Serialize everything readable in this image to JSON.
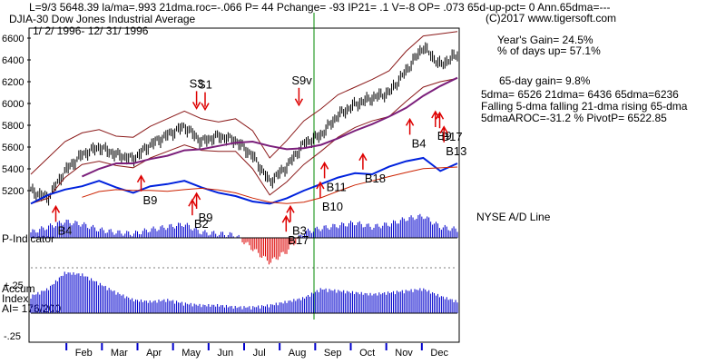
{
  "header": {
    "line1": "L=9/3  5648.39  la/ma=.993 21dma.roc=-.066 P=  44 Pchange= -93 IP21= .1 V=-8 OP= .073 65d-up-pct= 0 Ann.65dma=---",
    "line2": "DJIA-30  Dow Jones Industrial Average",
    "line3": "1/ 2/ 1996- 12/ 31/ 1996",
    "copyright": "(C)2017 www.tigersoft.com"
  },
  "stats": {
    "years_gain": "Year's Gain= 24.5%",
    "pct_days_up": "% of days up= 57.1%",
    "gain_65d": "65-day gain= 9.8%",
    "dma_line": "5dma= 6526 21dma= 6436 65dma=6236",
    "trend_line": "Falling 5-dma  falling 21-dma  rising 65-dma",
    "aroc_line": "5dmaAROC=-31.2 %  PivotP= 6522.85"
  },
  "panel_labels": {
    "ad_line": "NYSE A/D Line",
    "p_indicator": "P-Indicator",
    "accum": "Accum",
    "index": "Index",
    "ai": "AI= 176/200"
  },
  "colors": {
    "price": "#000000",
    "band": "#8b1a1a",
    "ma65": "#7b1f7b",
    "ad": "#0022dd",
    "ad_ma": "#cc2200",
    "signal_arrow": "#dd0000",
    "pi_pos": "#0000cc",
    "pi_neg": "#dd0000",
    "accum": "#0000cc",
    "vline": "#008800"
  },
  "chart_data": {
    "type": "line",
    "title": "DJIA-30 Dow Jones Industrial Average",
    "xlabel": "",
    "ylabel": "",
    "ylim": [
      5050,
      6700
    ],
    "yticks": [
      5200,
      5400,
      5600,
      5800,
      6000,
      6200,
      6400,
      6600
    ],
    "month_labels": [
      "Feb",
      "Mar",
      "Apr",
      "May",
      "Jun",
      "Jul",
      "Aug",
      "Sep",
      "Oct",
      "Nov",
      "Dec"
    ],
    "x": [
      0,
      0.04,
      0.08,
      0.12,
      0.16,
      0.2,
      0.24,
      0.28,
      0.32,
      0.36,
      0.4,
      0.44,
      0.48,
      0.52,
      0.56,
      0.6,
      0.64,
      0.68,
      0.72,
      0.76,
      0.8,
      0.84,
      0.88,
      0.92,
      0.96,
      1.0
    ],
    "x_note": "fraction of calendar year 1996",
    "series": [
      {
        "name": "DJIA close",
        "values": [
          5200,
          5130,
          5380,
          5530,
          5600,
          5530,
          5490,
          5620,
          5710,
          5790,
          5650,
          5700,
          5660,
          5520,
          5280,
          5420,
          5630,
          5710,
          5890,
          5990,
          6050,
          6100,
          6300,
          6520,
          6350,
          6450
        ]
      },
      {
        "name": "Upper band",
        "values": [
          5350,
          5500,
          5650,
          5730,
          5760,
          5700,
          5690,
          5790,
          5860,
          5930,
          5860,
          5830,
          5860,
          5750,
          5500,
          5660,
          5840,
          5950,
          6080,
          6150,
          6220,
          6300,
          6480,
          6620,
          6640,
          6660
        ]
      },
      {
        "name": "Lower band",
        "values": [
          5080,
          5130,
          5320,
          5440,
          5470,
          5430,
          5410,
          5500,
          5560,
          5620,
          5570,
          5560,
          5560,
          5400,
          5160,
          5280,
          5440,
          5560,
          5690,
          5780,
          5840,
          5880,
          6020,
          6150,
          6200,
          6230
        ]
      },
      {
        "name": "65-dma",
        "values": [
          null,
          null,
          null,
          5330,
          5400,
          5450,
          5450,
          5490,
          5520,
          5570,
          5580,
          5610,
          5640,
          5650,
          5610,
          5580,
          5590,
          5620,
          5680,
          5750,
          5810,
          5880,
          5960,
          6070,
          6160,
          6236
        ]
      }
    ],
    "ad_line": {
      "name": "NYSE A/D Line",
      "values": [
        5080,
        5160,
        5210,
        5240,
        5290,
        5230,
        5180,
        5240,
        5260,
        5290,
        5230,
        5180,
        5150,
        5100,
        5080,
        5130,
        5200,
        5260,
        5320,
        5360,
        5350,
        5420,
        5470,
        5500,
        5380,
        5450
      ]
    },
    "p_indicator": [
      4,
      8,
      12,
      10,
      6,
      4,
      3,
      6,
      8,
      10,
      4,
      3,
      2,
      -8,
      -18,
      -10,
      4,
      7,
      9,
      11,
      8,
      10,
      14,
      16,
      8,
      6
    ],
    "accum_index": [
      0.08,
      0.12,
      0.21,
      0.2,
      0.15,
      0.1,
      0.06,
      0.05,
      0.06,
      0.04,
      0.03,
      0.03,
      0.02,
      0.02,
      0.03,
      0.05,
      0.07,
      0.12,
      0.11,
      0.1,
      0.09,
      0.1,
      0.11,
      0.12,
      0.08,
      0.05
    ],
    "accum_ticks": [
      "+.25",
      "-.25"
    ],
    "signals": [
      {
        "label": "B4",
        "x": 0.05,
        "price": 5080
      },
      {
        "label": "B9",
        "x": 0.25,
        "price": 5360
      },
      {
        "label": "B9",
        "x": 0.38,
        "price": 5200
      },
      {
        "label": "B2",
        "x": 0.37,
        "price": 5140
      },
      {
        "label": "S3",
        "x": 0.38,
        "price": 5930
      },
      {
        "label": "S1",
        "x": 0.4,
        "price": 5920
      },
      {
        "label": "B3",
        "x": 0.6,
        "price": 5080
      },
      {
        "label": "B17",
        "x": 0.59,
        "price": 4990
      },
      {
        "label": "S9v",
        "x": 0.62,
        "price": 5960
      },
      {
        "label": "B11",
        "x": 0.68,
        "price": 5480
      },
      {
        "label": "B10",
        "x": 0.67,
        "price": 5300
      },
      {
        "label": "B18",
        "x": 0.77,
        "price": 5560
      },
      {
        "label": "B4",
        "x": 0.88,
        "price": 5880
      },
      {
        "label": "B9",
        "x": 0.94,
        "price": 5950
      },
      {
        "label": "B17",
        "x": 0.95,
        "price": 5940
      },
      {
        "label": "B13",
        "x": 0.96,
        "price": 5810
      }
    ]
  }
}
